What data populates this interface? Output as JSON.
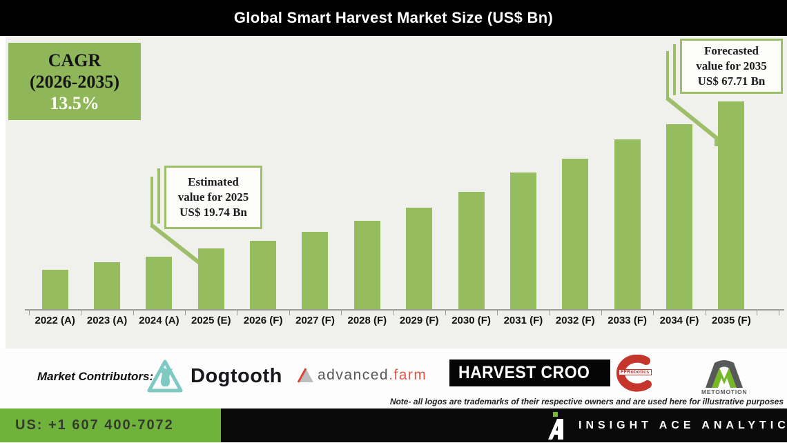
{
  "header": {
    "title": "Global Smart Harvest Market Size (US$ Bn)"
  },
  "cagr_box": {
    "line1": "CAGR",
    "line2": "(2026-2035)",
    "value": "13.5%"
  },
  "callouts": {
    "estimated": {
      "line1": "Estimated",
      "line2": "value for 2025",
      "line3": "US$ 19.74 Bn"
    },
    "forecasted": {
      "line1": "Forecasted",
      "line2": "value for 2035",
      "line3": "US$ 67.71 Bn"
    }
  },
  "chart_data": {
    "type": "bar",
    "title": "Global Smart Harvest Market Size (US$ Bn)",
    "unit": "US$ Bn",
    "categories": [
      "2022 (A)",
      "2023 (A)",
      "2024 (A)",
      "2025 (E)",
      "2026 (F)",
      "2027 (F)",
      "2028 (F)",
      "2029 (F)",
      "2030 (F)",
      "2031 (F)",
      "2032 (F)",
      "2033 (F)",
      "2034 (F)",
      "2035 (F)"
    ],
    "values": [
      12.9,
      15.2,
      17.1,
      19.74,
      22.2,
      25.2,
      28.8,
      33.0,
      38.2,
      44.4,
      49.0,
      55.2,
      60.3,
      67.71
    ],
    "ylim": [
      0,
      75
    ],
    "grid": false,
    "legend": false,
    "bar_color": "#95bc5f",
    "annotations": [
      {
        "category": "2025 (E)",
        "label": "Estimated value for 2025",
        "value": 19.74
      },
      {
        "category": "2035 (F)",
        "label": "Forecasted value for 2035",
        "value": 67.71
      }
    ],
    "cagr": {
      "period": "2026-2035",
      "percent": 13.5
    }
  },
  "contributors": {
    "label": "Market Contributors:",
    "logos": {
      "dogtooth": {
        "name": "Dogtooth"
      },
      "advanced_farm": {
        "part1": "advanced",
        "part2": ".farm"
      },
      "harvest_croo": {
        "name": "HARVEST CROO"
      },
      "ffrobotics": {
        "name": "FFRobotics"
      },
      "metomotion": {
        "name": "METOMOTION"
      }
    },
    "note": "Note- all logos are trademarks of their respective owners and are used here for illustrative purposes"
  },
  "footer": {
    "phone": "US: +1 607 400-7072",
    "logo_letter": "A",
    "brand": "INSIGHT ACE ANALYTIC"
  },
  "colors": {
    "bar_green": "#95bc5f",
    "cagr_green": "#8fb75a",
    "callout_border_green": "#9dbf68",
    "footer_green": "#6fb33d",
    "dogtooth_teal": "#7fc9c5",
    "advanced_farm_red": "#e0564a",
    "ffrobotics_red": "#c5352c",
    "metomotion_green": "#76b82a",
    "header_bg": "#000000",
    "panel_bg": "#f0f0ed"
  }
}
